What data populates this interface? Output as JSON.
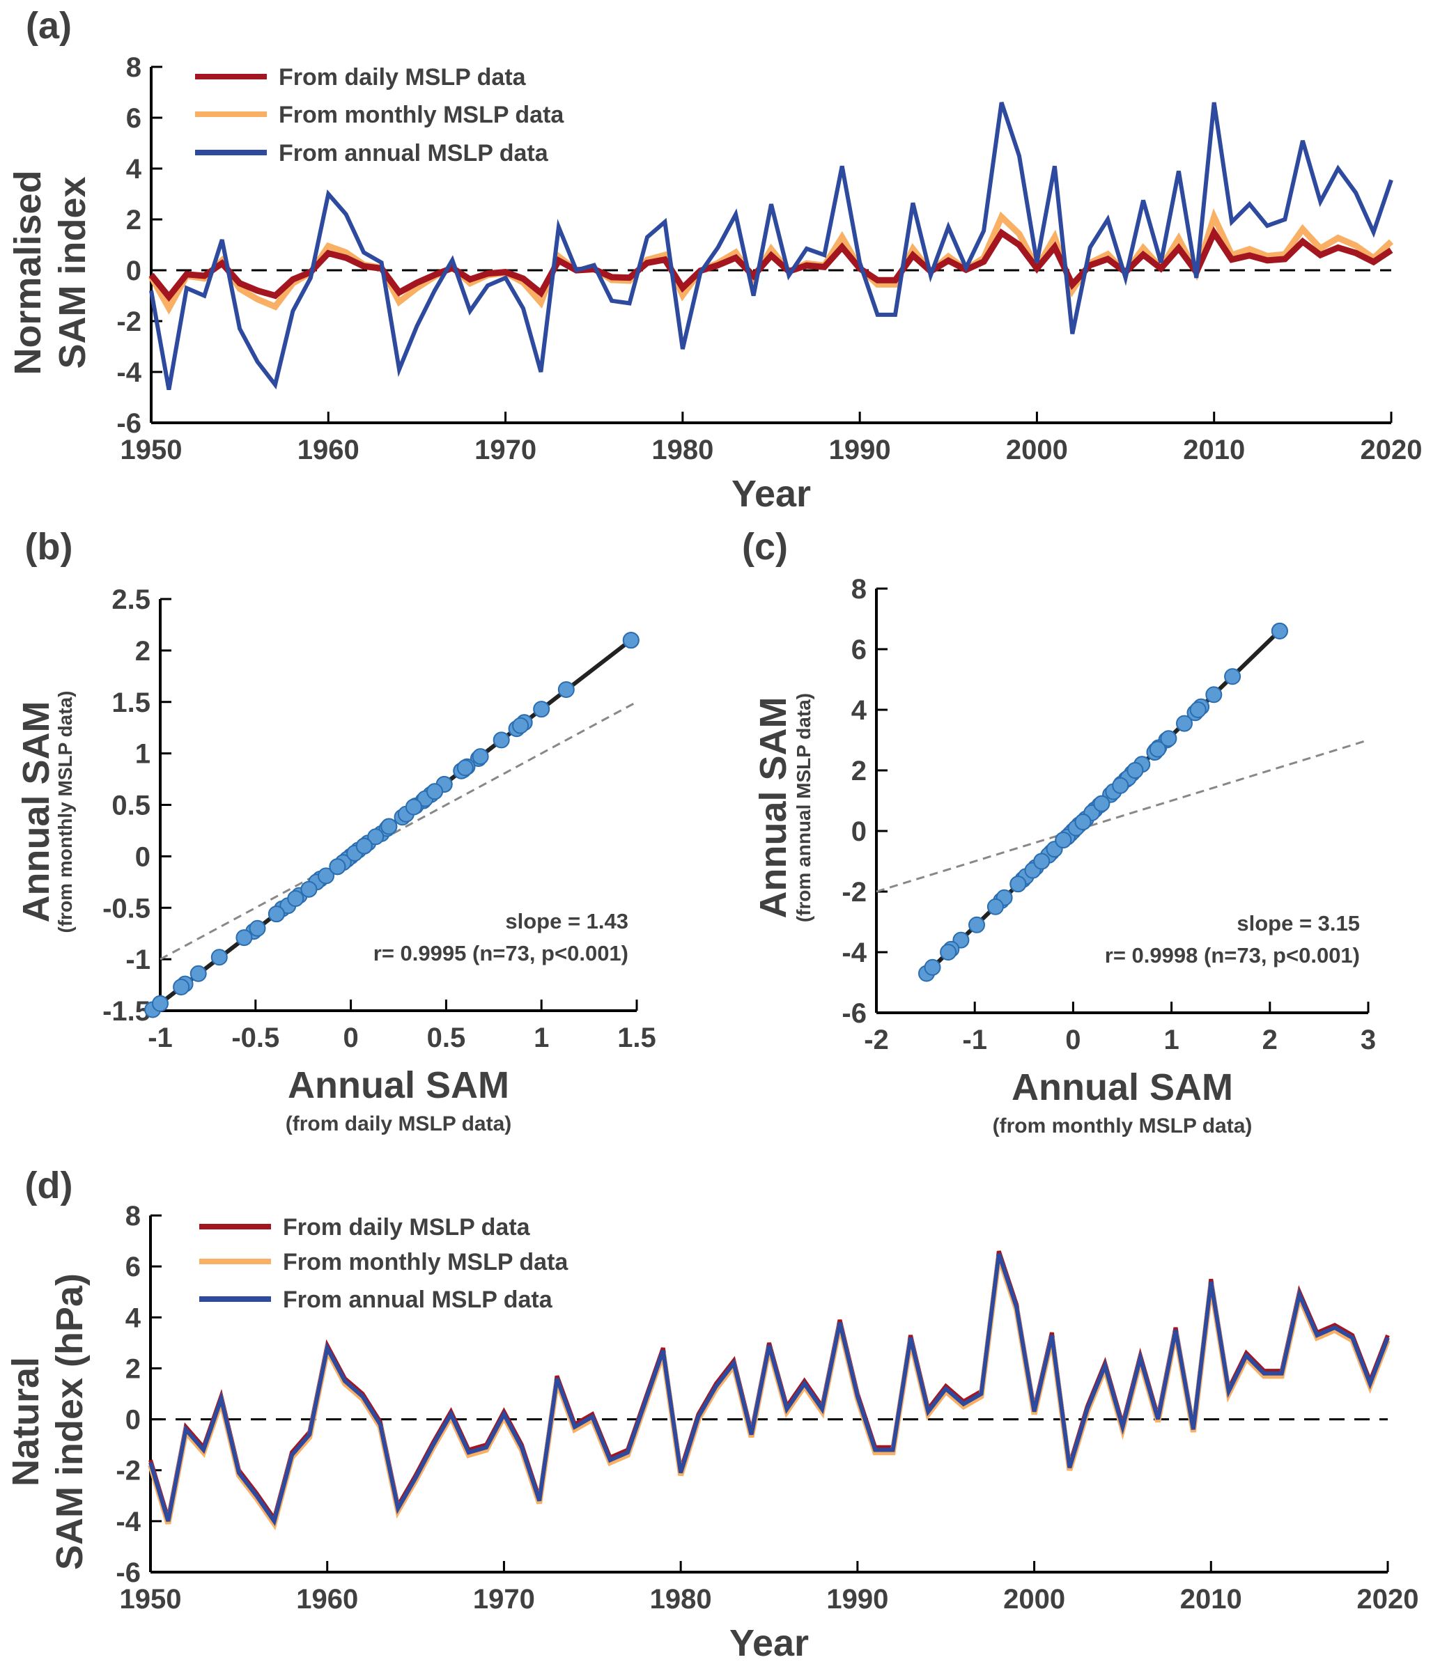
{
  "colors": {
    "daily": "#A3151F",
    "monthly": "#F9B064",
    "annual": "#2E4A9E",
    "point_fill": "#5B9BD5",
    "point_stroke": "#2A6DB0",
    "ref_line": "#888888",
    "fit_line": "#222222"
  },
  "chart_data": [
    {
      "id": "a",
      "type": "line",
      "panel_label": "(a)",
      "title": "",
      "xlabel": "Year",
      "ylabel": [
        "Normalised",
        "SAM index"
      ],
      "xlim": [
        1950,
        2020
      ],
      "ylim": [
        -6,
        8
      ],
      "xticks": [
        "1950",
        "1960",
        "1970",
        "1980",
        "1990",
        "2000",
        "2010",
        "2020"
      ],
      "yticks": [
        "-6",
        "-4",
        "-2",
        "0",
        "2",
        "4",
        "6",
        "8"
      ],
      "zero_line": "dashed",
      "legend_position": "top-left",
      "x_start": 1950,
      "series": [
        {
          "key": "daily",
          "name": "From daily MSLP data",
          "values": [
            -0.18,
            -1.04,
            -0.16,
            -0.22,
            0.27,
            -0.51,
            -0.8,
            -1.0,
            -0.36,
            -0.07,
            0.67,
            0.49,
            0.16,
            0.07,
            -0.87,
            -0.49,
            -0.18,
            0.09,
            -0.36,
            -0.13,
            -0.07,
            -0.33,
            -0.89,
            0.38,
            0,
            0.04,
            -0.27,
            -0.29,
            0.29,
            0.42,
            -0.69,
            -0.02,
            0.2,
            0.49,
            -0.22,
            0.58,
            -0.04,
            0.19,
            0.13,
            0.91,
            0.07,
            -0.39,
            -0.39,
            0.59,
            -0.04,
            0.38,
            0.02,
            0.34,
            1.47,
            1.0,
            0.07,
            0.91,
            -0.56,
            0.2,
            0.44,
            -0.07,
            0.61,
            0.07,
            0.87,
            -0.07,
            1.47,
            0.42,
            0.58,
            0.39,
            0.44,
            1.13,
            0.6,
            0.89,
            0.68,
            0.33,
            0.79
          ]
        },
        {
          "key": "monthly",
          "name": "From monthly MSLP data",
          "values": [
            -0.25,
            -1.49,
            -0.22,
            -0.32,
            0.38,
            -0.73,
            -1.14,
            -1.43,
            -0.51,
            -0.1,
            0.95,
            0.7,
            0.22,
            0.1,
            -1.24,
            -0.7,
            -0.25,
            0.13,
            -0.51,
            -0.19,
            -0.1,
            -0.48,
            -1.27,
            0.54,
            0,
            0.06,
            -0.38,
            -0.41,
            0.41,
            0.6,
            -0.98,
            -0.03,
            0.29,
            0.7,
            -0.32,
            0.83,
            -0.06,
            0.27,
            0.19,
            1.3,
            0.1,
            -0.56,
            -0.56,
            0.84,
            -0.06,
            0.54,
            0.03,
            0.49,
            2.1,
            1.43,
            0.1,
            1.3,
            -0.79,
            0.29,
            0.63,
            -0.1,
            0.87,
            0.1,
            1.24,
            -0.1,
            2.1,
            0.6,
            0.83,
            0.56,
            0.63,
            1.62,
            0.86,
            1.27,
            0.97,
            0.48,
            1.13
          ]
        },
        {
          "key": "annual",
          "name": "From annual MSLP data",
          "values": [
            -0.8,
            -4.7,
            -0.7,
            -1.0,
            1.2,
            -2.3,
            -3.6,
            -4.5,
            -1.6,
            -0.3,
            3.0,
            2.2,
            0.7,
            0.3,
            -3.9,
            -2.2,
            -0.8,
            0.4,
            -1.6,
            -0.6,
            -0.3,
            -1.5,
            -4.0,
            1.7,
            0.0,
            0.2,
            -1.2,
            -1.3,
            1.3,
            1.9,
            -3.1,
            -0.1,
            0.9,
            2.2,
            -1.0,
            2.6,
            -0.2,
            0.85,
            0.6,
            4.1,
            0.3,
            -1.75,
            -1.75,
            2.65,
            -0.2,
            1.7,
            0.1,
            1.55,
            6.6,
            4.5,
            0.3,
            4.1,
            -2.5,
            0.9,
            2.0,
            -0.3,
            2.75,
            0.3,
            3.9,
            -0.3,
            6.6,
            1.9,
            2.6,
            1.75,
            2.0,
            5.1,
            2.7,
            4.0,
            3.05,
            1.5,
            3.55
          ]
        }
      ]
    },
    {
      "id": "b",
      "type": "scatter",
      "panel_label": "(b)",
      "xlabel": "Annual SAM",
      "xlabel_sub": "(from daily MSLP data)",
      "ylabel": "Annual SAM",
      "ylabel_sub": "(from monthly MSLP data)",
      "x_series": "daily",
      "y_series": "monthly",
      "xlim": [
        -1,
        1.5
      ],
      "ylim": [
        -1.5,
        2.5
      ],
      "xticks": [
        "-1",
        "-0.5",
        "0",
        "0.5",
        "1",
        "1.5"
      ],
      "yticks": [
        "-1.5",
        "-1",
        "-0.5",
        "0",
        "0.5",
        "1",
        "1.5",
        "2",
        "2.5"
      ],
      "fit_slope": 1.43,
      "reference_line": "1:1 dashed",
      "annotation": [
        "slope = 1.43",
        "r= 0.9995 (n=73, p<0.001)"
      ]
    },
    {
      "id": "c",
      "type": "scatter",
      "panel_label": "(c)",
      "xlabel": "Annual SAM",
      "xlabel_sub": "(from monthly MSLP data)",
      "ylabel": "Annual SAM",
      "ylabel_sub": "(from annual MSLP data)",
      "x_series": "monthly",
      "y_series": "annual",
      "xlim": [
        -2,
        3
      ],
      "ylim": [
        -6,
        8
      ],
      "xticks": [
        "-2",
        "-1",
        "0",
        "1",
        "2",
        "3"
      ],
      "yticks": [
        "-6",
        "-4",
        "-2",
        "0",
        "2",
        "4",
        "6",
        "8"
      ],
      "fit_slope": 3.15,
      "reference_line": "1:1 dashed",
      "annotation": [
        "slope = 3.15",
        "r= 0.9998 (n=73, p<0.001)"
      ]
    },
    {
      "id": "d",
      "type": "line",
      "panel_label": "(d)",
      "xlabel": "Year",
      "ylabel": [
        "Natural",
        "SAM index (hPa)"
      ],
      "xlim": [
        1950,
        2020
      ],
      "ylim": [
        -6,
        8
      ],
      "xticks": [
        "1950",
        "1960",
        "1970",
        "1980",
        "1990",
        "2000",
        "2010",
        "2020"
      ],
      "yticks": [
        "-6",
        "-4",
        "-2",
        "0",
        "2",
        "4",
        "6",
        "8"
      ],
      "zero_line": "dashed",
      "legend_position": "top-left",
      "x_start": 1950,
      "base_values": [
        -1.6,
        -3.9,
        -0.3,
        -1.1,
        0.9,
        -2.0,
        -2.9,
        -3.9,
        -1.3,
        -0.5,
        2.9,
        1.6,
        1.0,
        -0.1,
        -3.4,
        -2.2,
        -0.9,
        0.3,
        -1.2,
        -1.0,
        0.3,
        -1.0,
        -3.1,
        1.7,
        -0.2,
        0.2,
        -1.5,
        -1.2,
        0.8,
        2.8,
        -2.0,
        0.2,
        1.4,
        2.3,
        -0.5,
        3.0,
        0.5,
        1.5,
        0.5,
        3.9,
        1.0,
        -1.1,
        -1.1,
        3.3,
        0.4,
        1.3,
        0.7,
        1.1,
        6.6,
        4.5,
        0.4,
        3.4,
        -1.8,
        0.5,
        2.2,
        -0.2,
        2.5,
        0.1,
        3.6,
        -0.3,
        5.5,
        1.2,
        2.6,
        1.9,
        1.9,
        5.0,
        3.4,
        3.7,
        3.3,
        1.5,
        3.3
      ],
      "series": [
        {
          "key": "daily",
          "name": "From daily MSLP data",
          "offset": 0.0
        },
        {
          "key": "monthly",
          "name": "From monthly MSLP data",
          "offset": -0.2
        },
        {
          "key": "annual",
          "name": "From annual MSLP data",
          "offset": -0.1
        }
      ]
    }
  ]
}
